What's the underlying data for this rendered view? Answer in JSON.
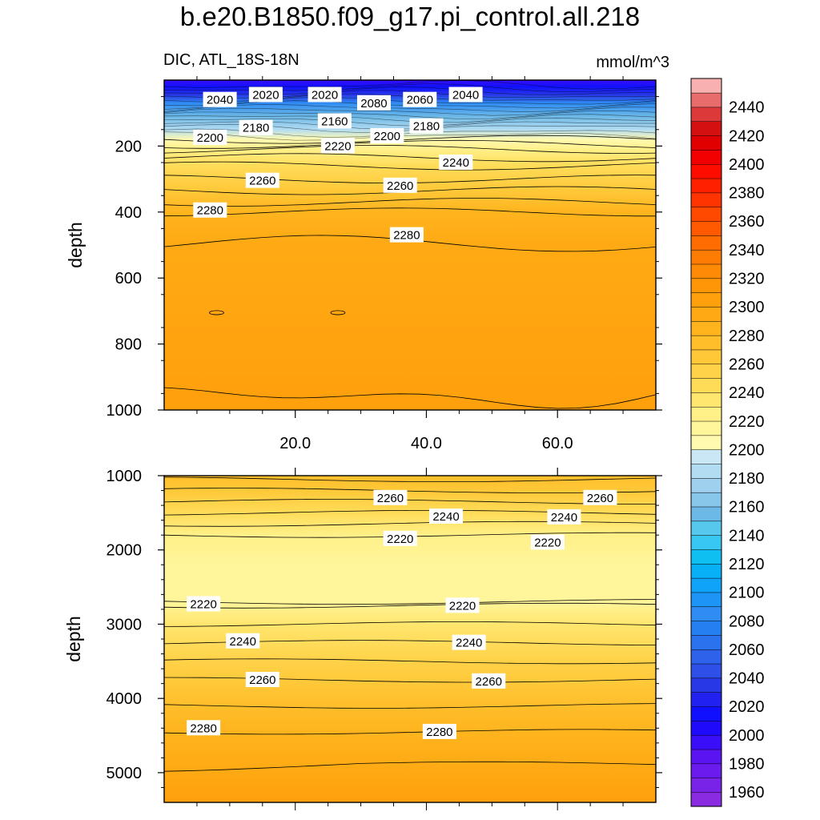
{
  "header": {
    "title": "b.e20.B1850.f09_g17.pi_control.all.218",
    "subtitle": "DIC, ATL_18S-18N",
    "units": "mmol/m^3"
  },
  "chart_data": [
    {
      "type": "heatmap",
      "panel": "upper",
      "title": "",
      "xlabel": "",
      "ylabel": "depth",
      "xlim": [
        0,
        75
      ],
      "ylim": [
        0,
        1000
      ],
      "y_reversed": true,
      "x_ticks": [
        20,
        40,
        60
      ],
      "x_tick_labels": [
        "20.0",
        "40.0",
        "60.0"
      ],
      "y_ticks": [
        200,
        400,
        600,
        800,
        1000
      ],
      "y_tick_labels": [
        "200",
        "400",
        "600",
        "800",
        "1000"
      ],
      "contour_interval": 10,
      "contour_depths": [
        {
          "level": 2200,
          "depth": 180
        },
        {
          "level": 2210,
          "depth": 195
        },
        {
          "level": 2220,
          "depth": 210
        },
        {
          "level": 2230,
          "depth": 235
        },
        {
          "level": 2240,
          "depth": 260
        },
        {
          "level": 2250,
          "depth": 300
        },
        {
          "level": 2260,
          "depth": 335
        },
        {
          "level": 2270,
          "depth": 370
        },
        {
          "level": 2280,
          "depth": 400
        },
        {
          "level": 2290,
          "depth": 495
        },
        {
          "level": 2300,
          "depth": 960
        }
      ],
      "contour_labels": [
        {
          "text": "2040",
          "x": 8.5,
          "y": 60
        },
        {
          "text": "2020",
          "x": 15.5,
          "y": 45
        },
        {
          "text": "2020",
          "x": 24.5,
          "y": 45
        },
        {
          "text": "2080",
          "x": 32,
          "y": 70
        },
        {
          "text": "2060",
          "x": 39,
          "y": 60
        },
        {
          "text": "2040",
          "x": 46,
          "y": 45
        },
        {
          "text": "2180",
          "x": 14,
          "y": 145
        },
        {
          "text": "2160",
          "x": 26,
          "y": 125
        },
        {
          "text": "2180",
          "x": 40,
          "y": 140
        },
        {
          "text": "2200",
          "x": 7,
          "y": 175
        },
        {
          "text": "2220",
          "x": 26.5,
          "y": 200
        },
        {
          "text": "2200",
          "x": 34,
          "y": 170
        },
        {
          "text": "2240",
          "x": 44.5,
          "y": 250
        },
        {
          "text": "2260",
          "x": 15,
          "y": 305
        },
        {
          "text": "2260",
          "x": 36,
          "y": 320
        },
        {
          "text": "2280",
          "x": 7,
          "y": 395
        },
        {
          "text": "2280",
          "x": 37,
          "y": 470
        }
      ]
    },
    {
      "type": "heatmap",
      "panel": "lower",
      "title": "",
      "xlabel": "",
      "ylabel": "depth",
      "xlim": [
        0,
        75
      ],
      "ylim": [
        1000,
        5400
      ],
      "y_reversed": true,
      "y_ticks": [
        1000,
        2000,
        3000,
        4000,
        5000
      ],
      "y_tick_labels": [
        "1000",
        "2000",
        "3000",
        "4000",
        "5000"
      ],
      "contour_interval": 10,
      "contour_depths": [
        {
          "level": 2220,
          "depth": 1800
        },
        {
          "level": 2230,
          "depth": 1650
        },
        {
          "level": 2240,
          "depth": 1500
        },
        {
          "level": 2250,
          "depth": 1350
        },
        {
          "level": 2260,
          "depth": 1200
        },
        {
          "level": 2270,
          "depth": 1050
        },
        {
          "level": 2210,
          "depth": 2700
        },
        {
          "level": 2220,
          "depth": 2750
        },
        {
          "level": 2230,
          "depth": 3000
        },
        {
          "level": 2240,
          "depth": 3250
        },
        {
          "level": 2250,
          "depth": 3500
        },
        {
          "level": 2260,
          "depth": 3750
        },
        {
          "level": 2270,
          "depth": 4100
        },
        {
          "level": 2280,
          "depth": 4450
        },
        {
          "level": 2290,
          "depth": 4950
        }
      ],
      "contour_labels": [
        {
          "text": "2260",
          "x": 34.5,
          "y": 1300
        },
        {
          "text": "2240",
          "x": 43,
          "y": 1550
        },
        {
          "text": "2260",
          "x": 66.5,
          "y": 1300
        },
        {
          "text": "2240",
          "x": 61,
          "y": 1560
        },
        {
          "text": "2220",
          "x": 36,
          "y": 1850
        },
        {
          "text": "2220",
          "x": 58.5,
          "y": 1900
        },
        {
          "text": "2220",
          "x": 6,
          "y": 2730
        },
        {
          "text": "2220",
          "x": 45.5,
          "y": 2750
        },
        {
          "text": "2240",
          "x": 12,
          "y": 3230
        },
        {
          "text": "2240",
          "x": 46.5,
          "y": 3250
        },
        {
          "text": "2260",
          "x": 15,
          "y": 3750
        },
        {
          "text": "2260",
          "x": 49.5,
          "y": 3770
        },
        {
          "text": "2280",
          "x": 6,
          "y": 4400
        },
        {
          "text": "2280",
          "x": 42,
          "y": 4450
        }
      ]
    }
  ],
  "colorbar": {
    "levels": [
      1950,
      1960,
      1970,
      1980,
      1990,
      2000,
      2010,
      2020,
      2030,
      2040,
      2050,
      2060,
      2070,
      2080,
      2090,
      2100,
      2110,
      2120,
      2130,
      2140,
      2150,
      2160,
      2170,
      2180,
      2190,
      2200,
      2210,
      2220,
      2230,
      2240,
      2250,
      2260,
      2270,
      2280,
      2290,
      2300,
      2310,
      2320,
      2330,
      2340,
      2350,
      2360,
      2370,
      2380,
      2390,
      2400,
      2410,
      2420,
      2430,
      2440,
      2450
    ],
    "colors": [
      "#8a2be2",
      "#7a23e8",
      "#6a1bee",
      "#5a14f2",
      "#3a0ef8",
      "#1f0afc",
      "#1010ff",
      "#2222f0",
      "#2838e6",
      "#2e50e8",
      "#2f62ea",
      "#2a72ee",
      "#267ff0",
      "#2f8cf2",
      "#1c95f6",
      "#10a3fa",
      "#08b0f8",
      "#10bff2",
      "#38c6f2",
      "#56c8ee",
      "#6cb8e6",
      "#88c6ea",
      "#9fd1ee",
      "#b2dcf2",
      "#c9e7f5",
      "#fffab0",
      "#fff59a",
      "#fff088",
      "#ffe66e",
      "#ffdc58",
      "#ffd248",
      "#ffc838",
      "#ffbe2a",
      "#ffb41e",
      "#ffaa14",
      "#ffa00c",
      "#ff9608",
      "#ff8a06",
      "#ff7c04",
      "#ff6c02",
      "#ff5a02",
      "#ff4800",
      "#ff3400",
      "#ff2000",
      "#ff0c00",
      "#f20000",
      "#e00000",
      "#d41010",
      "#dc3a3a",
      "#e86c6c",
      "#f8b0b0"
    ],
    "tick_labels": [
      "1960",
      "1980",
      "2000",
      "2020",
      "2040",
      "2060",
      "2080",
      "2100",
      "2120",
      "2140",
      "2160",
      "2180",
      "2200",
      "2220",
      "2240",
      "2260",
      "2280",
      "2300",
      "2320",
      "2340",
      "2360",
      "2380",
      "2400",
      "2420",
      "2440"
    ]
  }
}
